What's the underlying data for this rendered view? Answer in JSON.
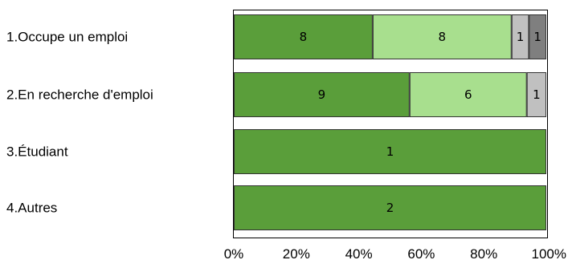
{
  "chart_data": {
    "type": "bar",
    "orientation": "horizontal",
    "stacked": "percent",
    "categories": [
      "1.Occupe un emploi",
      "2.En recherche d'emploi",
      "3.Étudiant",
      "4.Autres"
    ],
    "series": [
      {
        "values": [
          8,
          9,
          1,
          2
        ],
        "color": "#5a9e3a"
      },
      {
        "values": [
          8,
          6,
          0,
          0
        ],
        "color": "#a8df8e"
      },
      {
        "values": [
          1,
          1,
          0,
          0
        ],
        "color": "#c0c0c0"
      },
      {
        "values": [
          1,
          0,
          0,
          0
        ],
        "color": "#7f7f7f"
      }
    ],
    "xlim": [
      0,
      100
    ],
    "x_ticks": [
      "0%",
      "20%",
      "40%",
      "60%",
      "80%",
      "100%"
    ],
    "grid": false,
    "legend": "none"
  }
}
